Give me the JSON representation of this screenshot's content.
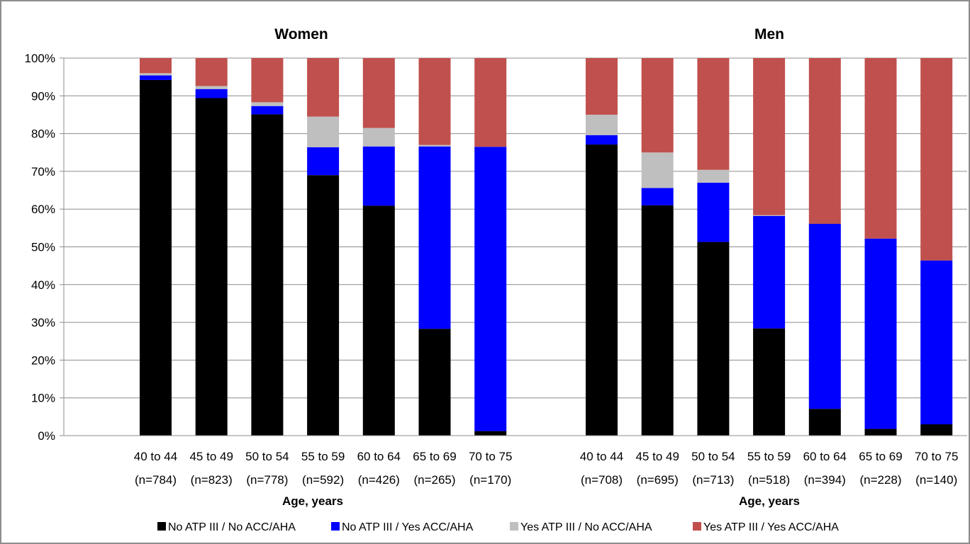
{
  "chart_data": {
    "type": "bar",
    "stacked": true,
    "percent": true,
    "y_ticks": [
      "0%",
      "10%",
      "20%",
      "30%",
      "40%",
      "50%",
      "60%",
      "70%",
      "80%",
      "90%",
      "100%"
    ],
    "ylim": [
      0,
      100
    ],
    "grid": true,
    "legend_placement": "bottom",
    "series": [
      {
        "name": "No ATP III / No ACC/AHA",
        "color": "#000000"
      },
      {
        "name": "No ATP III / Yes ACC/AHA",
        "color": "#0000ff"
      },
      {
        "name": "Yes ATP III / No ACC/AHA",
        "color": "#bfbfbf"
      },
      {
        "name": "Yes ATP III / Yes ACC/AHA",
        "color": "#c0504d"
      }
    ],
    "panels": [
      {
        "title": "Women",
        "xlabel": "Age, years",
        "categories": [
          "40 to 44",
          "45 to 49",
          "50 to 54",
          "55 to 59",
          "60 to 64",
          "65 to 69",
          "70 to 75"
        ],
        "counts": [
          "(n=784)",
          "(n=823)",
          "(n=778)",
          "(n=592)",
          "(n=426)",
          "(n=265)",
          "(n=170)"
        ],
        "values": [
          [
            94.2,
            1.2,
            0.6,
            4.0
          ],
          [
            89.4,
            2.4,
            0.8,
            7.4
          ],
          [
            85.1,
            2.2,
            1.0,
            11.7
          ],
          [
            69.0,
            7.4,
            8.1,
            15.5
          ],
          [
            60.9,
            15.7,
            4.9,
            18.5
          ],
          [
            28.3,
            48.3,
            0.4,
            23.0
          ],
          [
            1.2,
            75.3,
            0.0,
            23.5
          ]
        ]
      },
      {
        "title": "Men",
        "xlabel": "Age, years",
        "categories": [
          "40 to 44",
          "45 to 49",
          "50 to 54",
          "55 to 59",
          "60 to 64",
          "65 to 69",
          "70 to 75"
        ],
        "counts": [
          "(n=708)",
          "(n=695)",
          "(n=713)",
          "(n=518)",
          "(n=394)",
          "(n=228)",
          "(n=140)"
        ],
        "values": [
          [
            77.1,
            2.5,
            5.4,
            15.0
          ],
          [
            61.0,
            4.6,
            9.4,
            25.0
          ],
          [
            51.3,
            15.7,
            3.4,
            29.6
          ],
          [
            28.4,
            29.8,
            0.2,
            41.6
          ],
          [
            7.1,
            49.0,
            0.0,
            43.9
          ],
          [
            1.8,
            50.4,
            0.0,
            47.8
          ],
          [
            3.0,
            43.4,
            0.0,
            53.6
          ]
        ]
      }
    ]
  }
}
